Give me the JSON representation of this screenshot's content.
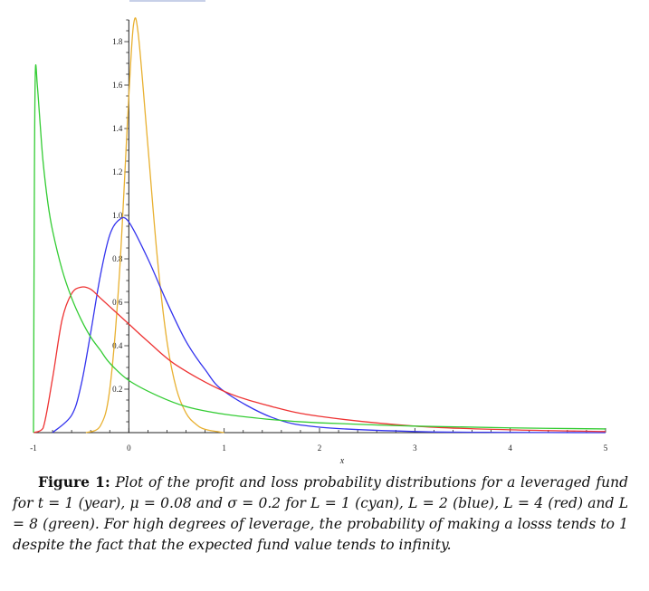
{
  "caption": {
    "label": "Figure 1:",
    "text": "Plot of the profit and loss probability distributions for a leveraged fund for t = 1 (year), μ = 0.08 and σ = 0.2 for L = 1 (cyan), L = 2 (blue), L = 4 (red) and L = 8 (green). For high degrees of leverage, the probability of making a losss tends to 1 despite the fact that the expected fund value tends to infinity."
  },
  "chart_data": {
    "type": "line",
    "title": "",
    "xlabel": "x",
    "ylabel": "",
    "xlim": [
      -1,
      5
    ],
    "ylim": [
      0,
      1.9
    ],
    "x_ticks": [
      -1,
      0,
      1,
      2,
      3,
      4,
      5
    ],
    "y_ticks": [
      0.2,
      0.4,
      0.6,
      0.8,
      1.0,
      1.2,
      1.4,
      1.6,
      1.8
    ],
    "grid": false,
    "legend": "none",
    "params": {
      "t": 1,
      "mu": 0.08,
      "sigma": 0.2
    },
    "series": [
      {
        "leverage": 1,
        "color": "#e8b030",
        "peak_x": 0.05,
        "peak_y": 1.88,
        "x": [
          -0.45,
          -0.3,
          -0.2,
          -0.1,
          0.0,
          0.05,
          0.1,
          0.2,
          0.3,
          0.4,
          0.5,
          0.6,
          0.7,
          0.8,
          1.0
        ],
        "y": [
          0.0,
          0.03,
          0.2,
          0.72,
          1.55,
          1.88,
          1.83,
          1.32,
          0.8,
          0.42,
          0.2,
          0.09,
          0.04,
          0.015,
          0.0
        ]
      },
      {
        "leverage": 2,
        "color": "#3333ee",
        "peak_x": -0.07,
        "peak_y": 0.98,
        "x": [
          -0.8,
          -0.6,
          -0.5,
          -0.4,
          -0.3,
          -0.2,
          -0.1,
          0.0,
          0.2,
          0.4,
          0.6,
          0.8,
          1.0,
          1.5,
          2.0,
          3.0,
          4.0,
          5.0
        ],
        "y": [
          0.0,
          0.08,
          0.22,
          0.46,
          0.72,
          0.91,
          0.98,
          0.97,
          0.8,
          0.6,
          0.42,
          0.29,
          0.19,
          0.07,
          0.025,
          0.005,
          0.001,
          0.0
        ],
        "note": ""
      },
      {
        "leverage": 4,
        "color": "#ee3333",
        "peak_x": -0.48,
        "peak_y": 0.67,
        "x": [
          -1.0,
          -0.9,
          -0.8,
          -0.7,
          -0.6,
          -0.5,
          -0.4,
          -0.3,
          -0.2,
          0.0,
          0.2,
          0.5,
          1.0,
          1.5,
          2.0,
          3.0,
          4.0,
          5.0
        ],
        "y": [
          0.0,
          0.02,
          0.25,
          0.52,
          0.64,
          0.67,
          0.66,
          0.62,
          0.58,
          0.5,
          0.42,
          0.31,
          0.19,
          0.12,
          0.075,
          0.03,
          0.013,
          0.005
        ]
      },
      {
        "leverage": 8,
        "color": "#33cc33",
        "peak_x": -0.98,
        "peak_y": 1.67,
        "x": [
          -1.0,
          -0.99,
          -0.98,
          -0.96,
          -0.93,
          -0.9,
          -0.85,
          -0.8,
          -0.7,
          -0.6,
          -0.5,
          -0.4,
          -0.3,
          -0.2,
          0.0,
          0.3,
          0.6,
          1.0,
          1.5,
          2.0,
          3.0,
          4.0,
          5.0
        ],
        "y": [
          0.0,
          1.2,
          1.67,
          1.6,
          1.42,
          1.25,
          1.06,
          0.93,
          0.75,
          0.62,
          0.52,
          0.44,
          0.38,
          0.32,
          0.24,
          0.17,
          0.12,
          0.085,
          0.06,
          0.045,
          0.03,
          0.022,
          0.017
        ]
      }
    ]
  }
}
